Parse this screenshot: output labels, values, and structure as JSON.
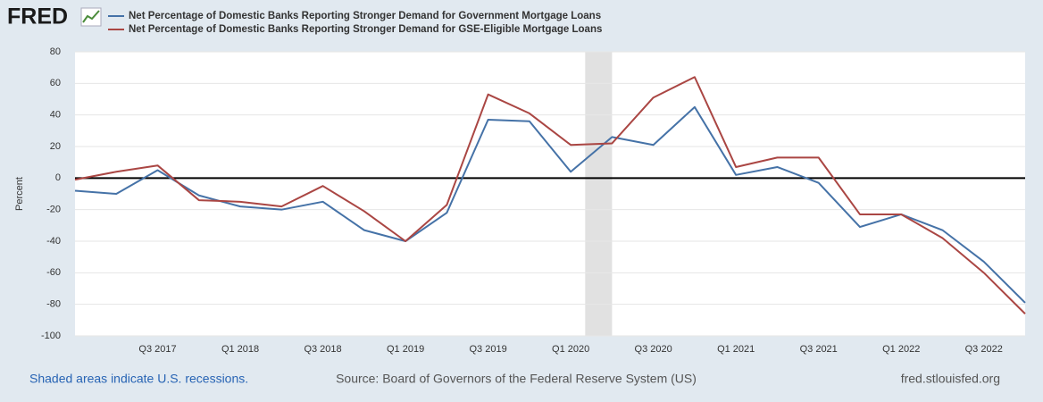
{
  "logo": "FRED",
  "chart_data": {
    "type": "line",
    "y_label": "Percent",
    "categories": [
      null,
      null,
      "Q3 2017",
      null,
      "Q1 2018",
      null,
      "Q3 2018",
      null,
      "Q1 2019",
      null,
      "Q3 2019",
      null,
      "Q1 2020",
      null,
      "Q3 2020",
      null,
      "Q1 2021",
      null,
      "Q3 2021",
      null,
      "Q1 2022",
      null,
      "Q3 2022",
      null
    ],
    "series": [
      {
        "name": "Net Percentage of Domestic Banks Reporting Stronger Demand for Government Mortgage Loans",
        "color": "#4572a7",
        "values": [
          -8,
          -10,
          5,
          -11,
          -18,
          -20,
          -15,
          -33,
          -40,
          -22,
          37,
          36,
          4,
          26,
          21,
          45,
          2,
          7,
          -3,
          -31,
          -23,
          -33,
          -53,
          -79
        ]
      },
      {
        "name": "Net Percentage of Domestic Banks Reporting Stronger Demand for GSE-Eligible Mortgage Loans",
        "color": "#aa4643",
        "values": [
          -1,
          4,
          8,
          -14,
          -15,
          -18,
          -5,
          -21,
          -40,
          -17,
          53,
          41,
          21,
          22,
          51,
          64,
          7,
          13,
          13,
          -23,
          -23,
          -38,
          -60,
          -86
        ]
      }
    ],
    "recessions": [
      [
        12.35,
        13.0
      ]
    ],
    "ylim": [
      -100,
      80
    ],
    "yticks": [
      -100,
      -80,
      -60,
      -40,
      -20,
      0,
      20,
      40,
      60,
      80
    ],
    "grid": true,
    "zero_line": true,
    "note": "Shaded areas indicate U.S. recessions.",
    "source": "Source: Board of Governors of the Federal Reserve System (US)",
    "site": "fred.stlouisfed.org"
  }
}
